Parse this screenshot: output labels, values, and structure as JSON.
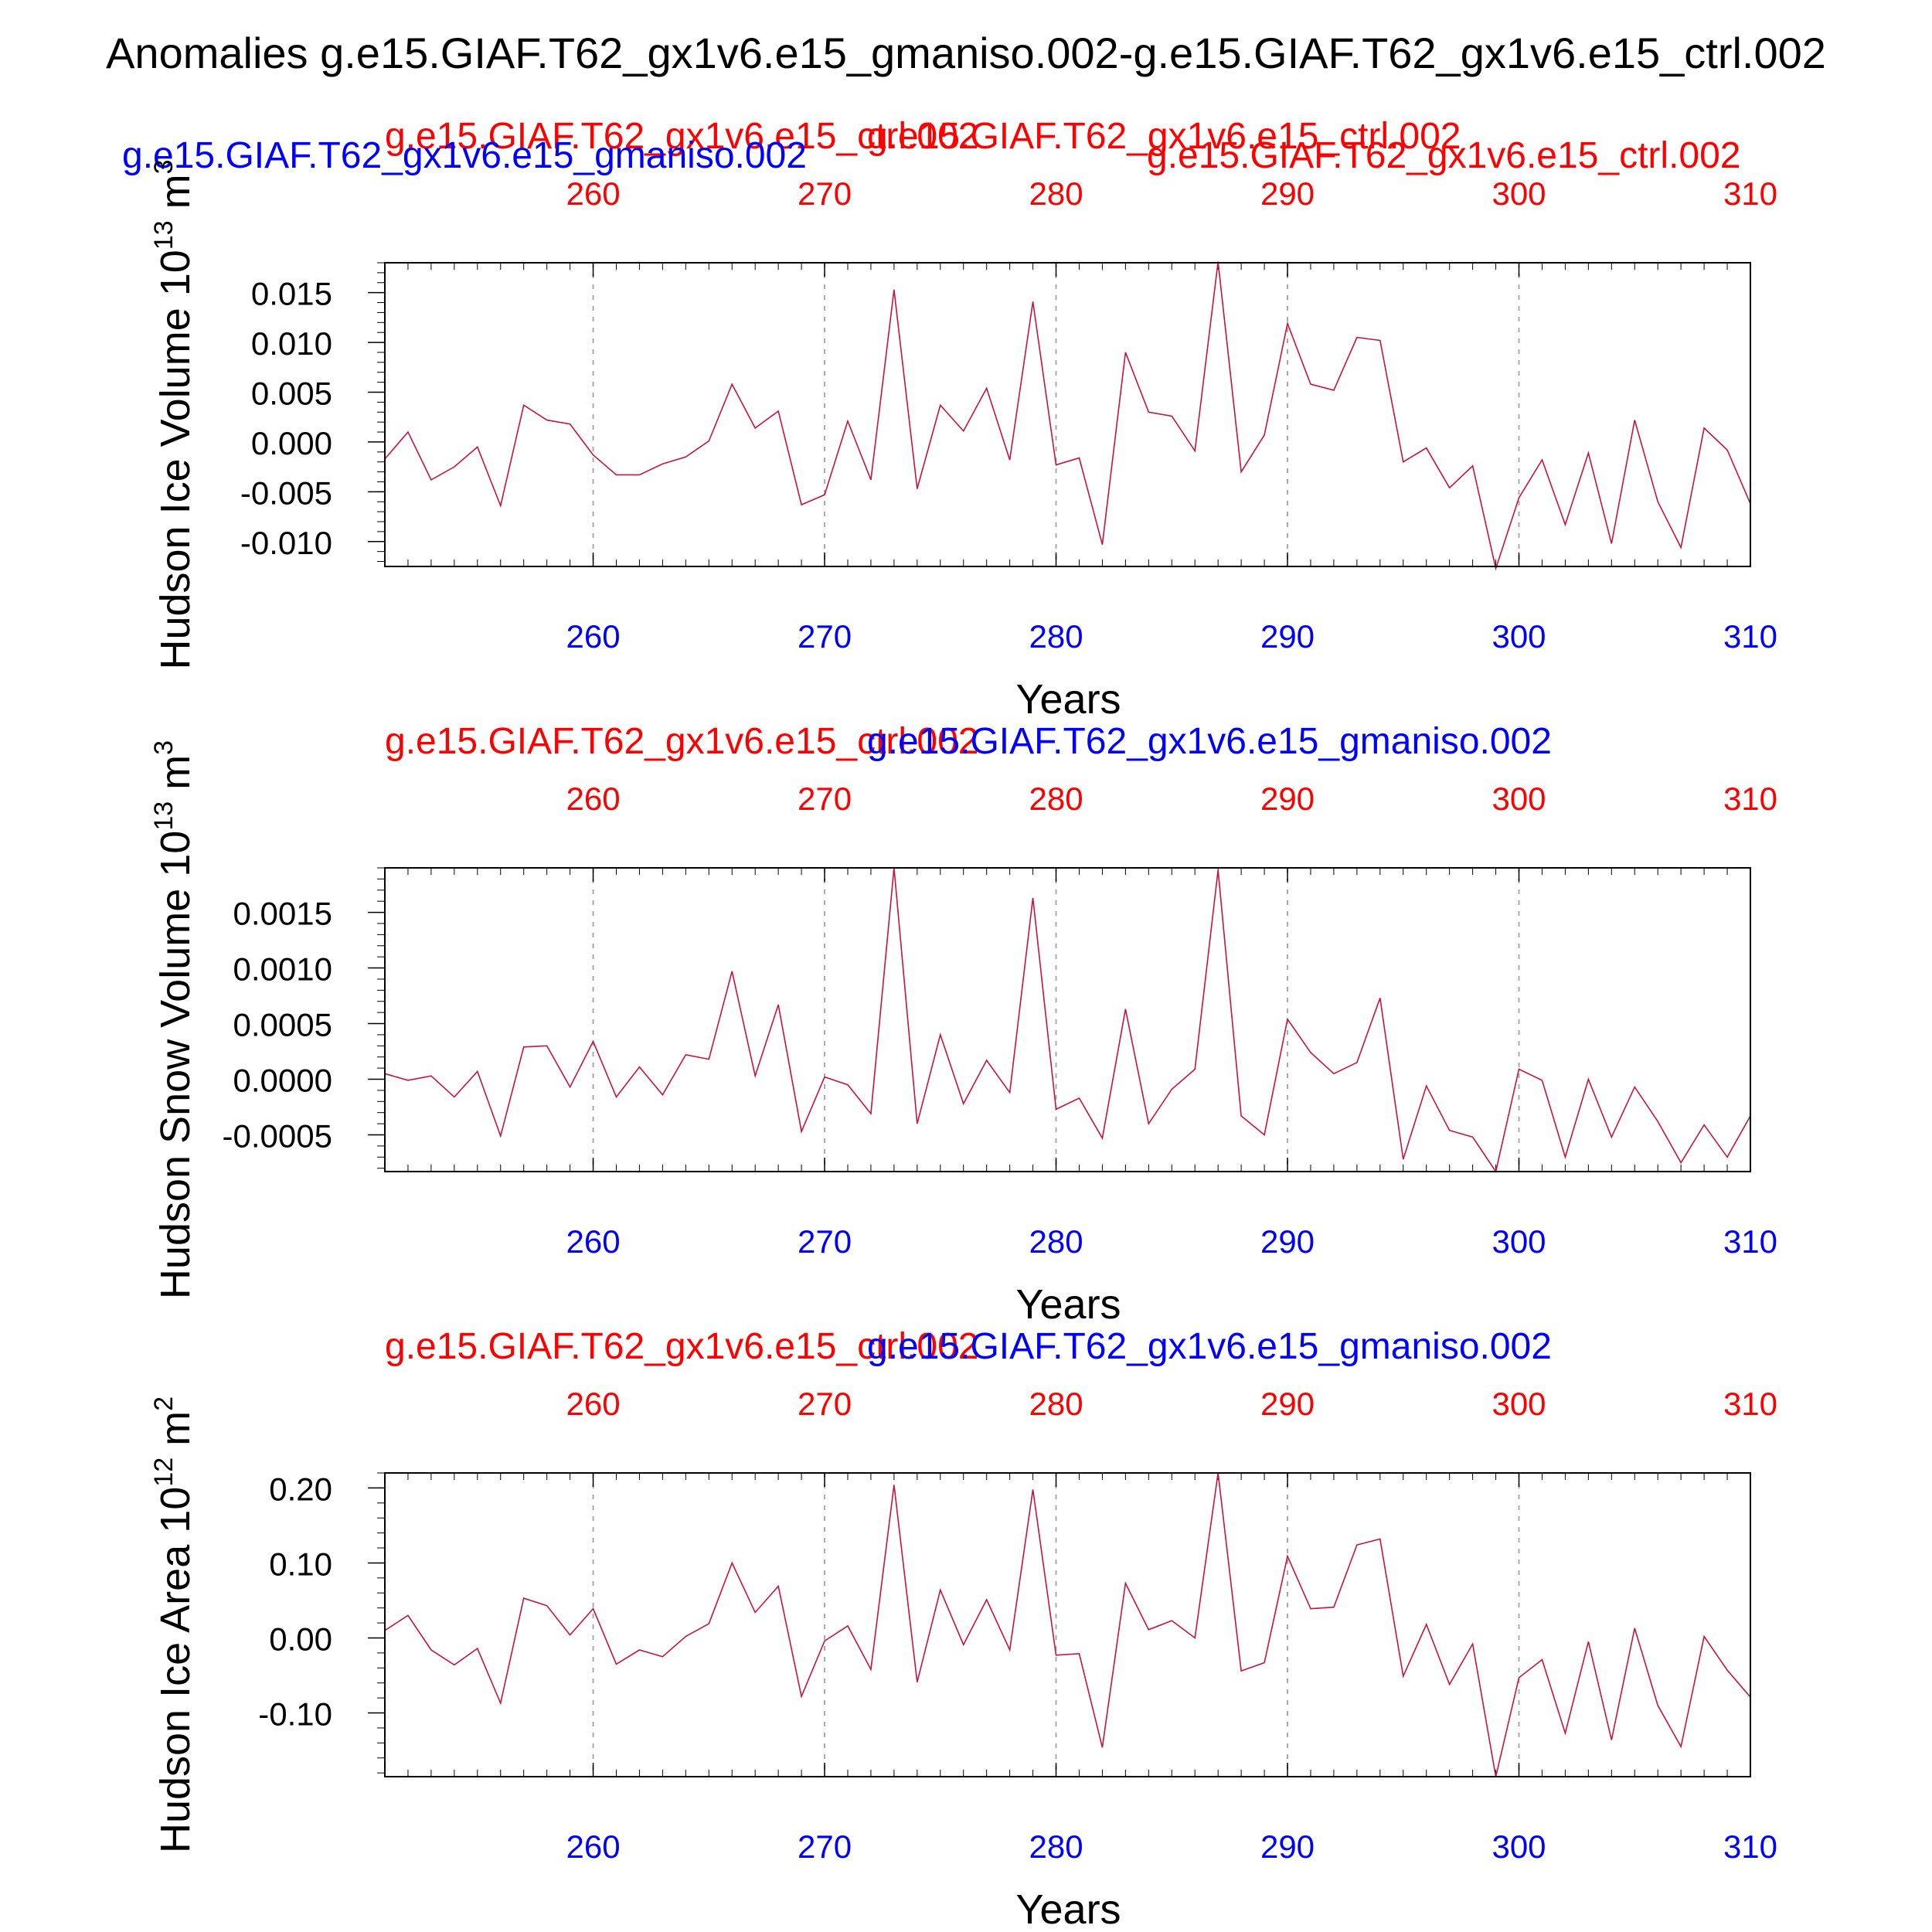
{
  "figure_title": "Anomalies g.e15.GIAF.T62_gx1v6.e15_gmaniso.002-g.e15.GIAF.T62_gx1v6.e15_ctrl.002",
  "colors": {
    "red": "#ff0000",
    "blue": "#0000ff",
    "line": "#c8143c",
    "text": "#000000"
  },
  "chart_data": [
    {
      "type": "line",
      "ylabel": "Hudson Ice Volume 10",
      "ylabel_exp": "13",
      "ylabel_unit": " m",
      "ylabel_unit_exp": "3",
      "xlabel": "Years",
      "legend_red": "g.e15.GIAF.T62_gx1v6.e15_ctrl.002",
      "legend_blue": "g.e15.GIAF.T62_gx1v6.e15_gmaniso.002",
      "xlim": [
        251,
        310
      ],
      "ylim": [
        -0.0125,
        0.018
      ],
      "xticks": [
        260,
        270,
        280,
        290,
        300,
        310
      ],
      "xtick_labels": [
        "260",
        "270",
        "280",
        "290",
        "300",
        "310"
      ],
      "yticks": [
        -0.01,
        -0.005,
        0,
        0.005,
        0.01,
        0.015
      ],
      "ytick_labels": [
        "-0.010",
        "-0.005",
        "0.000",
        "0.005",
        "0.010",
        "0.015"
      ],
      "yminor": 0.001,
      "x": [
        251,
        252,
        253,
        254,
        255,
        256,
        257,
        258,
        259,
        260,
        261,
        262,
        263,
        264,
        265,
        266,
        267,
        268,
        269,
        270,
        271,
        272,
        273,
        274,
        275,
        276,
        277,
        278,
        279,
        280,
        281,
        282,
        283,
        284,
        285,
        286,
        287,
        288,
        289,
        290,
        291,
        292,
        293,
        294,
        295,
        296,
        297,
        298,
        299,
        300,
        301,
        302,
        303,
        304,
        305,
        306,
        307,
        308,
        309,
        310
      ],
      "series": [
        {
          "values": [
            -0.0017,
            0.001,
            -0.0038,
            -0.0025,
            -0.0005,
            -0.0064,
            0.0037,
            0.0022,
            0.0018,
            -0.0013,
            -0.0033,
            -0.0033,
            -0.0022,
            -0.0015,
            0.0001,
            0.0058,
            0.0014,
            0.0031,
            -0.0063,
            -0.0053,
            0.0021,
            -0.0038,
            0.0153,
            -0.0047,
            0.0037,
            0.0011,
            0.0054,
            -0.0018,
            0.0141,
            -0.0023,
            -0.0016,
            -0.0103,
            0.009,
            0.003,
            0.0026,
            -0.0009,
            0.0181,
            -0.003,
            0.0007,
            0.0119,
            0.0058,
            0.0052,
            0.0105,
            0.0102,
            -0.002,
            -0.0006,
            -0.0046,
            -0.0024,
            -0.0127,
            -0.0056,
            -0.0018,
            -0.0083,
            -0.0011,
            -0.0102,
            0.0022,
            -0.006,
            -0.0106,
            0.0014,
            -0.0008,
            -0.0062
          ]
        }
      ]
    },
    {
      "type": "line",
      "ylabel": "Hudson Snow Volume 10",
      "ylabel_exp": "13",
      "ylabel_unit": " m",
      "ylabel_unit_exp": "3",
      "xlabel": "Years",
      "legend_red": "g.e15.GIAF.T62_gx1v6.e15_ctrl.002",
      "legend_blue": "g.e15.GIAF.T62_gx1v6.e15_gmaniso.002",
      "xlim": [
        251,
        310
      ],
      "ylim": [
        -0.00083,
        0.0019
      ],
      "xticks": [
        260,
        270,
        280,
        290,
        300,
        310
      ],
      "xtick_labels": [
        "260",
        "270",
        "280",
        "290",
        "300",
        "310"
      ],
      "yticks": [
        -0.0005,
        0,
        0.0005,
        0.001,
        0.0015
      ],
      "ytick_labels": [
        "-0.0005",
        "0.0000",
        "0.0005",
        "0.0010",
        "0.0015"
      ],
      "yminor": 0.0001,
      "x": [
        251,
        252,
        253,
        254,
        255,
        256,
        257,
        258,
        259,
        260,
        261,
        262,
        263,
        264,
        265,
        266,
        267,
        268,
        269,
        270,
        271,
        272,
        273,
        274,
        275,
        276,
        277,
        278,
        279,
        280,
        281,
        282,
        283,
        284,
        285,
        286,
        287,
        288,
        289,
        290,
        291,
        292,
        293,
        294,
        295,
        296,
        297,
        298,
        299,
        300,
        301,
        302,
        303,
        304,
        305,
        306,
        307,
        308,
        309,
        310
      ],
      "series": [
        {
          "values": [
            5e-05,
            -1e-05,
            3e-05,
            -0.00016,
            7e-05,
            -0.00051,
            0.00029,
            0.0003,
            -7e-05,
            0.00034,
            -0.00016,
            0.00011,
            -0.00014,
            0.00022,
            0.00018,
            0.00097,
            3e-05,
            0.00067,
            -0.00047,
            2e-05,
            -5e-05,
            -0.00031,
            0.0019,
            -0.0004,
            0.0004,
            -0.00022,
            0.00017,
            -0.00012,
            0.00163,
            -0.00027,
            -0.00017,
            -0.00053,
            0.00063,
            -0.0004,
            -9e-05,
            9e-05,
            0.00188,
            -0.00033,
            -0.0005,
            0.00054,
            0.00024,
            5e-05,
            0.00015,
            0.00073,
            -0.00072,
            -6e-05,
            -0.00046,
            -0.00052,
            -0.00083,
            9e-05,
            -1e-05,
            -0.0007,
            0.0,
            -0.00052,
            -7e-05,
            -0.00038,
            -0.00075,
            -0.00041,
            -0.0007,
            -0.00033
          ]
        }
      ]
    },
    {
      "type": "line",
      "ylabel": "Hudson Ice Area 10",
      "ylabel_exp": "12",
      "ylabel_unit": " m",
      "ylabel_unit_exp": "2",
      "xlabel": "Years",
      "legend_red": "g.e15.GIAF.T62_gx1v6.e15_ctrl.002",
      "legend_blue": "g.e15.GIAF.T62_gx1v6.e15_gmaniso.002",
      "xlim": [
        251,
        310
      ],
      "ylim": [
        -0.185,
        0.22
      ],
      "xticks": [
        260,
        270,
        280,
        290,
        300,
        310
      ],
      "xtick_labels": [
        "260",
        "270",
        "280",
        "290",
        "300",
        "310"
      ],
      "yticks": [
        -0.1,
        0,
        0.1,
        0.2
      ],
      "ytick_labels": [
        "-0.10",
        "0.00",
        "0.10",
        "0.20"
      ],
      "yminor": 0.02,
      "x": [
        251,
        252,
        253,
        254,
        255,
        256,
        257,
        258,
        259,
        260,
        261,
        262,
        263,
        264,
        265,
        266,
        267,
        268,
        269,
        270,
        271,
        272,
        273,
        274,
        275,
        276,
        277,
        278,
        279,
        280,
        281,
        282,
        283,
        284,
        285,
        286,
        287,
        288,
        289,
        290,
        291,
        292,
        293,
        294,
        295,
        296,
        297,
        298,
        299,
        300,
        301,
        302,
        303,
        304,
        305,
        306,
        307,
        308,
        309,
        310
      ],
      "series": [
        {
          "values": [
            0.01,
            0.03,
            -0.016,
            -0.036,
            -0.014,
            -0.087,
            0.053,
            0.043,
            0.004,
            0.039,
            -0.035,
            -0.016,
            -0.025,
            0.002,
            0.019,
            0.1,
            0.034,
            0.069,
            -0.078,
            -0.004,
            0.016,
            -0.042,
            0.204,
            -0.059,
            0.064,
            -0.009,
            0.051,
            -0.016,
            0.198,
            -0.023,
            -0.021,
            -0.146,
            0.073,
            0.011,
            0.023,
            0.0,
            0.22,
            -0.044,
            -0.033,
            0.109,
            0.039,
            0.041,
            0.124,
            0.132,
            -0.051,
            0.018,
            -0.062,
            -0.008,
            -0.185,
            -0.053,
            -0.029,
            -0.127,
            -0.005,
            -0.136,
            0.013,
            -0.09,
            -0.145,
            0.002,
            -0.043,
            -0.079
          ]
        }
      ]
    }
  ]
}
